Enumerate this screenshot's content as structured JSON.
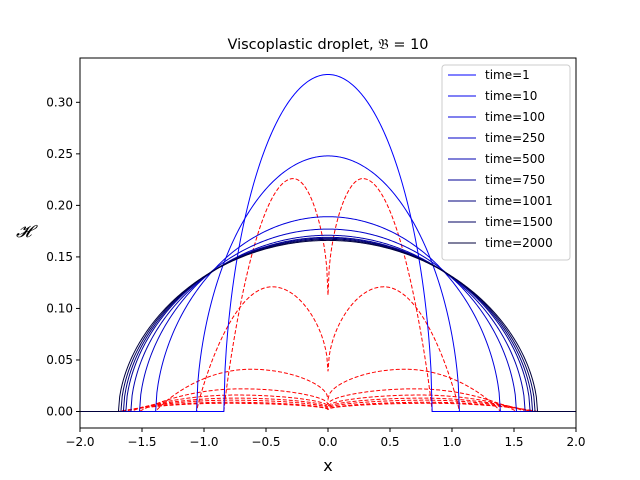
{
  "chart_data": {
    "type": "line",
    "title": "Viscoplastic droplet, 𝔅 = 10",
    "xlabel": "x",
    "ylabel": "𝓗",
    "xlim": [
      -2.0,
      2.0
    ],
    "ylim": [
      -0.016,
      0.343
    ],
    "xticks": [
      "-2.0",
      "-1.5",
      "-1.0",
      "-0.5",
      "0.0",
      "0.5",
      "1.0",
      "1.5",
      "2.0"
    ],
    "yticks": [
      "0.00",
      "0.05",
      "0.10",
      "0.15",
      "0.20",
      "0.25",
      "0.30"
    ],
    "grid": false,
    "legend_position": "top-right",
    "height_series": [
      {
        "name": "time=1",
        "color": "#0000ff",
        "peak": 0.327,
        "half_width": 0.84
      },
      {
        "name": "time=10",
        "color": "#0000ee",
        "peak": 0.248,
        "half_width": 1.06
      },
      {
        "name": "time=100",
        "color": "#0000dd",
        "peak": 0.189,
        "half_width": 1.39
      },
      {
        "name": "time=250",
        "color": "#0000c8",
        "peak": 0.177,
        "half_width": 1.52
      },
      {
        "name": "time=500",
        "color": "#0000b0",
        "peak": 0.171,
        "half_width": 1.59
      },
      {
        "name": "time=750",
        "color": "#000096",
        "peak": 0.169,
        "half_width": 1.63
      },
      {
        "name": "time=1001",
        "color": "#00007c",
        "peak": 0.168,
        "half_width": 1.65
      },
      {
        "name": "time=1500",
        "color": "#000060",
        "peak": 0.167,
        "half_width": 1.67
      },
      {
        "name": "time=2000",
        "color": "#00003c",
        "peak": 0.166,
        "half_width": 1.69
      }
    ],
    "yield_surface_series": [
      {
        "color": "#ff0000",
        "peak": 0.226,
        "peak_x": 0.28,
        "center": 0.113,
        "half_width": 0.84
      },
      {
        "color": "#ff0000",
        "peak": 0.121,
        "peak_x": 0.45,
        "center": 0.039,
        "half_width": 1.06
      },
      {
        "color": "#ff0000",
        "peak": 0.041,
        "peak_x": 0.62,
        "center": 0.012,
        "half_width": 1.39
      },
      {
        "color": "#ff0000",
        "peak": 0.022,
        "peak_x": 0.7,
        "center": 0.007,
        "half_width": 1.52
      },
      {
        "color": "#ff0000",
        "peak": 0.016,
        "peak_x": 0.74,
        "center": 0.005,
        "half_width": 1.59
      },
      {
        "color": "#ff0000",
        "peak": 0.013,
        "peak_x": 0.76,
        "center": 0.004,
        "half_width": 1.63
      },
      {
        "color": "#ff0000",
        "peak": 0.011,
        "peak_x": 0.78,
        "center": 0.003,
        "half_width": 1.65
      },
      {
        "color": "#ff0000",
        "peak": 0.009,
        "peak_x": 0.8,
        "center": 0.002,
        "half_width": 1.67
      },
      {
        "color": "#ff0000",
        "peak": 0.008,
        "peak_x": 0.82,
        "center": 0.002,
        "half_width": 1.69
      }
    ]
  }
}
